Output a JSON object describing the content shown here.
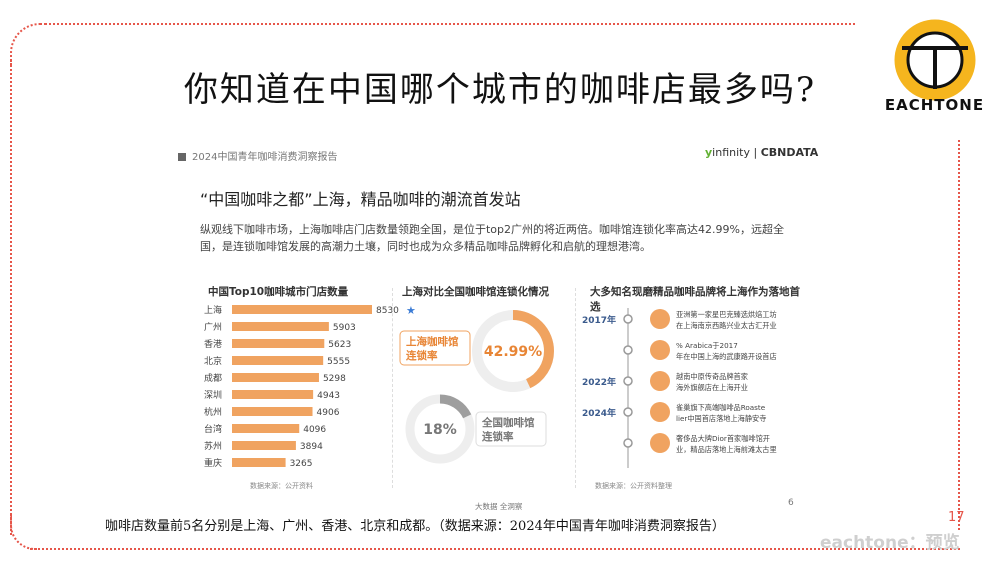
{
  "main_title": "你知道在中国哪个城市的咖啡店最多吗?",
  "logo": {
    "text": "EACHTONE",
    "colors": {
      "ring": "#f5b51e",
      "ink": "#111111"
    }
  },
  "report": {
    "header": "2024中国青年咖啡消费洞察报告",
    "brand_left": "infinity",
    "brand_right": "CBNDATA",
    "title": "“中国咖啡之都”上海，精品咖啡的潮流首发站",
    "description": "纵观线下咖啡市场，上海咖啡店门店数量领跑全国，是位于top2广州的将近两倍。咖啡馆连锁化率高达42.99%，远超全国，是连锁咖啡馆发展的高潮力土壤，同时也成为众多精品咖啡品牌孵化和启航的理想港湾。",
    "bar_source": "数据来源：公开资料",
    "donut_title": "上海对比全国咖啡馆连锁化情况",
    "donut_source": "数据来源：公开资料整理",
    "timeline_title": "大多知名现磨精品咖啡品牌将上海作为落地首选",
    "footer_left": "大数据 全洞察",
    "page_number": "6"
  },
  "chart_data": [
    {
      "type": "bar",
      "orientation": "horizontal",
      "title": "中国Top10咖啡城市门店数量",
      "categories": [
        "上海",
        "广州",
        "香港",
        "北京",
        "成都",
        "深圳",
        "杭州",
        "台湾",
        "苏州",
        "重庆"
      ],
      "values": [
        8530,
        5903,
        5623,
        5555,
        5298,
        4943,
        4906,
        4096,
        3894,
        3265
      ],
      "value_labels": [
        "8530",
        "5903",
        "5623",
        "5555",
        "5298",
        "4943",
        "4906",
        "4096",
        "3894",
        "3265"
      ],
      "highlight_marker": "★",
      "bar_color": "#f0a360",
      "xlim": [
        0,
        8530
      ]
    },
    {
      "type": "pie",
      "variant": "donut",
      "label": "上海咖啡馆连锁率",
      "value": 42.99,
      "value_label": "42.99%",
      "color": "#f0a360"
    },
    {
      "type": "pie",
      "variant": "donut",
      "label": "全国咖啡馆连锁率",
      "value": 18,
      "value_label": "18%",
      "color": "#9e9e9e"
    }
  ],
  "timeline": [
    {
      "year": "2017年",
      "text": "亚洲第一家星巴克臻选烘焙工坊在上海南京西路兴业太古汇开业"
    },
    {
      "year": "",
      "text": "% Arabica于2017年在中国上海的武康路开设首店"
    },
    {
      "year": "2022年",
      "text": "越南中原传奇品牌首家海外旗舰店在上海开业"
    },
    {
      "year": "2024年",
      "text": "雀巢旗下高端咖啡品Roastelier中国首店落地上海静安寺"
    },
    {
      "year": "",
      "text": "奢侈品大牌Dior首家咖啡馆开业，精品店落地上海前滩太古里"
    }
  ],
  "caption": "咖啡店数量前5名分别是上海、广州、香港、北京和成都。（数据来源：2024年中国青年咖啡消费洞察报告）",
  "slide_number": "17",
  "watermark": "eachtone：预览"
}
